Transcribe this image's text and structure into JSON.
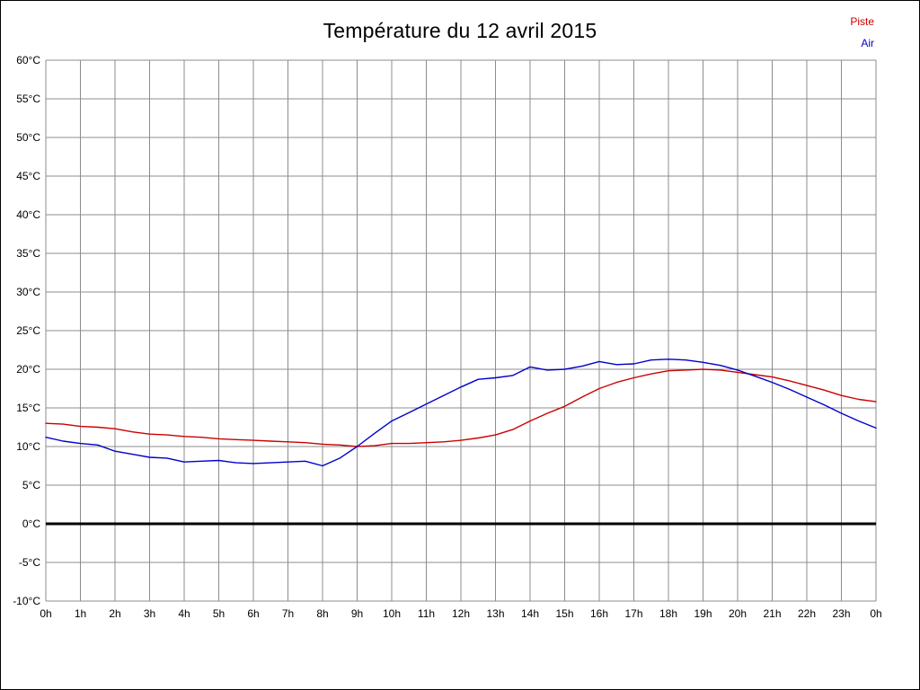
{
  "page": {
    "background": "#ffffff",
    "border_color": "#000000"
  },
  "legend": {
    "items": [
      {
        "label": "Piste",
        "color": "#cc0000"
      },
      {
        "label": "Air",
        "color": "#0000cc"
      }
    ]
  },
  "chart_data": {
    "type": "line",
    "title": "Température du 12 avril 2015",
    "xlabel": "",
    "ylabel": "",
    "ylim": [
      -10,
      60
    ],
    "grid": true,
    "grid_color": "#8c8c8c",
    "legend_position": "top-right",
    "x_labels": [
      "0h",
      "1h",
      "2h",
      "3h",
      "4h",
      "5h",
      "6h",
      "7h",
      "8h",
      "9h",
      "10h",
      "11h",
      "12h",
      "13h",
      "14h",
      "15h",
      "16h",
      "17h",
      "18h",
      "19h",
      "20h",
      "21h",
      "22h",
      "23h",
      "0h"
    ],
    "y_ticks": [
      {
        "value": 60,
        "label": "60°C"
      },
      {
        "value": 55,
        "label": "55°C"
      },
      {
        "value": 50,
        "label": "50°C"
      },
      {
        "value": 45,
        "label": "45°C"
      },
      {
        "value": 40,
        "label": "40°C"
      },
      {
        "value": 35,
        "label": "35°C"
      },
      {
        "value": 30,
        "label": "30°C"
      },
      {
        "value": 25,
        "label": "25°C"
      },
      {
        "value": 20,
        "label": "20°C"
      },
      {
        "value": 15,
        "label": "15°C"
      },
      {
        "value": 10,
        "label": "10°C"
      },
      {
        "value": 5,
        "label": "5°C"
      },
      {
        "value": 0,
        "label": "0°C"
      },
      {
        "value": -5,
        "label": "-5°C"
      },
      {
        "value": -10,
        "label": "-10°C"
      }
    ],
    "zero_line": {
      "value": 0,
      "color": "#000000",
      "width": 3
    },
    "x_hours_step": 0.5,
    "series": [
      {
        "name": "Piste",
        "color": "#cc0000",
        "values": [
          13.0,
          12.9,
          12.6,
          12.5,
          12.3,
          11.9,
          11.6,
          11.5,
          11.3,
          11.2,
          11.0,
          10.9,
          10.8,
          10.7,
          10.6,
          10.5,
          10.3,
          10.2,
          10.0,
          10.1,
          10.4,
          10.4,
          10.5,
          10.6,
          10.8,
          11.1,
          11.5,
          12.2,
          13.3,
          14.3,
          15.2,
          16.4,
          17.5,
          18.3,
          18.9,
          19.4,
          19.8,
          19.9,
          20.0,
          19.9,
          19.6,
          19.3,
          19.0,
          18.5,
          17.9,
          17.3,
          16.6,
          16.1,
          15.8
        ]
      },
      {
        "name": "Air",
        "color": "#0000cc",
        "values": [
          11.2,
          10.7,
          10.4,
          10.2,
          9.4,
          9.0,
          8.6,
          8.5,
          8.0,
          8.1,
          8.2,
          7.9,
          7.8,
          7.9,
          8.0,
          8.1,
          7.5,
          8.5,
          10.0,
          11.7,
          13.3,
          14.4,
          15.5,
          16.6,
          17.7,
          18.7,
          18.9,
          19.2,
          20.3,
          19.9,
          20.0,
          20.4,
          21.0,
          20.6,
          20.7,
          21.2,
          21.3,
          21.2,
          20.9,
          20.5,
          19.9,
          19.1,
          18.3,
          17.4,
          16.4,
          15.4,
          14.3,
          13.3,
          12.4
        ]
      }
    ]
  }
}
